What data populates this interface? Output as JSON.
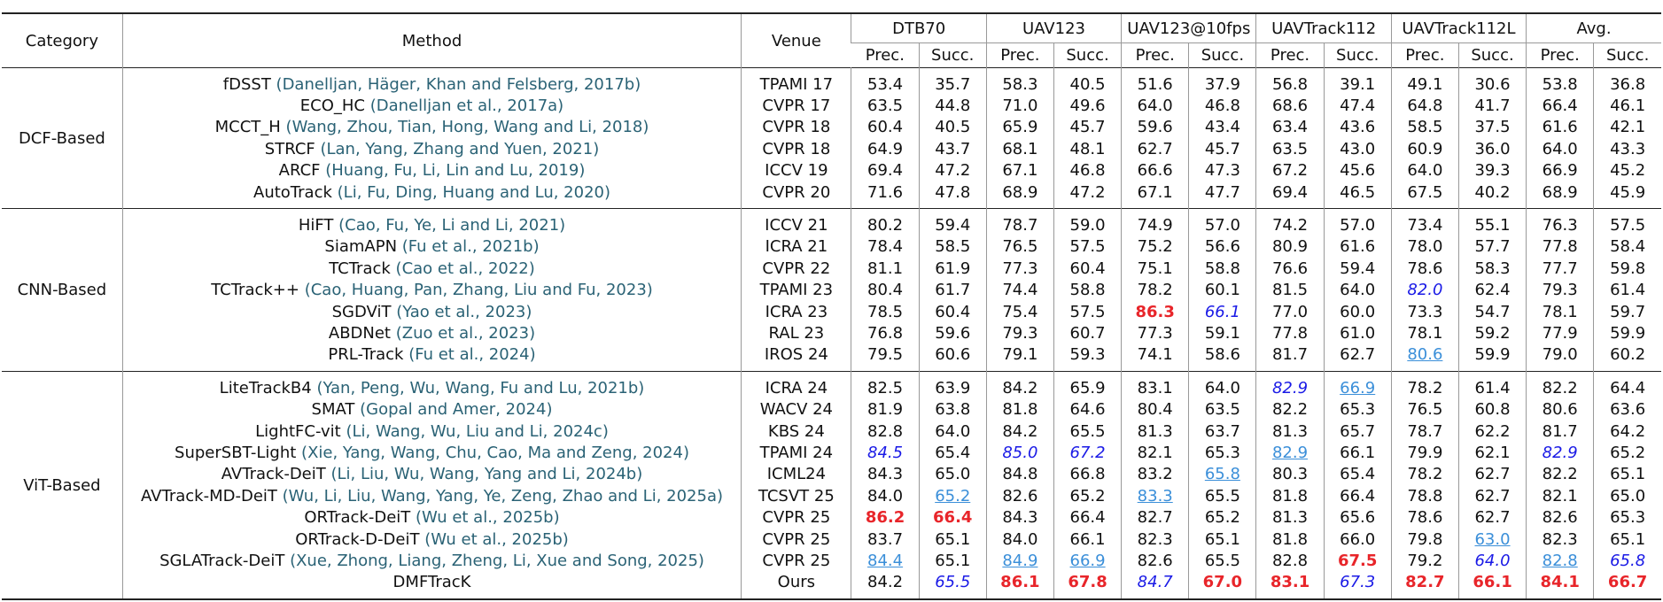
{
  "table": {
    "header": {
      "category": "Category",
      "method": "Method",
      "venue": "Venue",
      "datasets": [
        "DTB70",
        "UAV123",
        "UAV123@10fps",
        "UAVTrack112",
        "UAVTrack112L",
        "Avg."
      ],
      "metrics": [
        "Prec.",
        "Succ."
      ]
    },
    "emphasis_styles": {
      "first": {
        "color": "#e8252a",
        "bold": true
      },
      "second": {
        "color": "#1a1ae6",
        "italic": true
      },
      "third": {
        "color": "#3b8fd9",
        "underline": true
      }
    },
    "groups": [
      {
        "category": "DCF-Based",
        "rows": [
          {
            "method": "fDSST",
            "cite": "(Danelljan, Häger, Khan and Felsberg, 2017b)",
            "venue": "TPAMI 17",
            "values": [
              "53.4",
              "35.7",
              "58.3",
              "40.5",
              "51.6",
              "37.9",
              "56.8",
              "39.1",
              "49.1",
              "30.6",
              "53.8",
              "36.8"
            ]
          },
          {
            "method": "ECO_HC",
            "cite": "(Danelljan et al., 2017a)",
            "venue": "CVPR 17",
            "values": [
              "63.5",
              "44.8",
              "71.0",
              "49.6",
              "64.0",
              "46.8",
              "68.6",
              "47.4",
              "64.8",
              "41.7",
              "66.4",
              "46.1"
            ]
          },
          {
            "method": "MCCT_H",
            "cite": "(Wang, Zhou, Tian, Hong, Wang and Li, 2018)",
            "venue": "CVPR 18",
            "values": [
              "60.4",
              "40.5",
              "65.9",
              "45.7",
              "59.6",
              "43.4",
              "63.4",
              "43.6",
              "58.5",
              "37.5",
              "61.6",
              "42.1"
            ]
          },
          {
            "method": "STRCF",
            "cite": "(Lan, Yang, Zhang and Yuen, 2021)",
            "venue": "CVPR 18",
            "values": [
              "64.9",
              "43.7",
              "68.1",
              "48.1",
              "62.7",
              "45.7",
              "63.5",
              "43.0",
              "60.9",
              "36.0",
              "64.0",
              "43.3"
            ]
          },
          {
            "method": "ARCF",
            "cite": "(Huang, Fu, Li, Lin and Lu, 2019)",
            "venue": "ICCV 19",
            "values": [
              "69.4",
              "47.2",
              "67.1",
              "46.8",
              "66.6",
              "47.3",
              "67.2",
              "45.6",
              "64.0",
              "39.3",
              "66.9",
              "45.2"
            ]
          },
          {
            "method": "AutoTrack",
            "cite": "(Li, Fu, Ding, Huang and Lu, 2020)",
            "venue": "CVPR 20",
            "values": [
              "71.6",
              "47.8",
              "68.9",
              "47.2",
              "67.1",
              "47.7",
              "69.4",
              "46.5",
              "67.5",
              "40.2",
              "68.9",
              "45.9"
            ]
          }
        ]
      },
      {
        "category": "CNN-Based",
        "rows": [
          {
            "method": "HiFT",
            "cite": "(Cao, Fu, Ye, Li and Li, 2021)",
            "venue": "ICCV 21",
            "values": [
              "80.2",
              "59.4",
              "78.7",
              "59.0",
              "74.9",
              "57.0",
              "74.2",
              "57.0",
              "73.4",
              "55.1",
              "76.3",
              "57.5"
            ]
          },
          {
            "method": "SiamAPN",
            "cite": "(Fu et al., 2021b)",
            "venue": "ICRA 21",
            "values": [
              "78.4",
              "58.5",
              "76.5",
              "57.5",
              "75.2",
              "56.6",
              "80.9",
              "61.6",
              "78.0",
              "57.7",
              "77.8",
              "58.4"
            ]
          },
          {
            "method": "TCTrack",
            "cite": "(Cao et al., 2022)",
            "venue": "CVPR 22",
            "values": [
              "81.1",
              "61.9",
              "77.3",
              "60.4",
              "75.1",
              "58.8",
              "76.6",
              "59.4",
              "78.6",
              "58.3",
              "77.7",
              "59.8"
            ]
          },
          {
            "method": "TCTrack++",
            "cite": "(Cao, Huang, Pan, Zhang, Liu and Fu, 2023)",
            "venue": "TPAMI 23",
            "values": [
              "80.4",
              "61.7",
              "74.4",
              "58.8",
              "78.2",
              "60.1",
              "81.5",
              "64.0",
              "82.0",
              "62.4",
              "79.3",
              "61.4"
            ],
            "emphasis": {
              "8": "second"
            }
          },
          {
            "method": "SGDViT",
            "cite": "(Yao et al., 2023)",
            "venue": "ICRA 23",
            "values": [
              "78.5",
              "60.4",
              "75.4",
              "57.5",
              "86.3",
              "66.1",
              "77.0",
              "60.0",
              "73.3",
              "54.7",
              "78.1",
              "59.7"
            ],
            "emphasis": {
              "4": "first",
              "5": "second"
            }
          },
          {
            "method": "ABDNet",
            "cite": "(Zuo et al., 2023)",
            "venue": "RAL 23",
            "values": [
              "76.8",
              "59.6",
              "79.3",
              "60.7",
              "77.3",
              "59.1",
              "77.8",
              "61.0",
              "78.1",
              "59.2",
              "77.9",
              "59.9"
            ]
          },
          {
            "method": "PRL-Track",
            "cite": "(Fu et al., 2024)",
            "venue": "IROS 24",
            "values": [
              "79.5",
              "60.6",
              "79.1",
              "59.3",
              "74.1",
              "58.6",
              "81.7",
              "62.7",
              "80.6",
              "59.9",
              "79.0",
              "60.2"
            ],
            "emphasis": {
              "8": "third"
            }
          }
        ]
      },
      {
        "category": "ViT-Based",
        "rows": [
          {
            "method": "LiteTrackB4",
            "cite": "(Yan, Peng, Wu, Wang, Fu and Lu, 2021b)",
            "venue": "ICRA 24",
            "values": [
              "82.5",
              "63.9",
              "84.2",
              "65.9",
              "83.1",
              "64.0",
              "82.9",
              "66.9",
              "78.2",
              "61.4",
              "82.2",
              "64.4"
            ],
            "emphasis": {
              "6": "second",
              "7": "third"
            }
          },
          {
            "method": "SMAT",
            "cite": "(Gopal and Amer, 2024)",
            "venue": "WACV 24",
            "values": [
              "81.9",
              "63.8",
              "81.8",
              "64.6",
              "80.4",
              "63.5",
              "82.2",
              "65.3",
              "76.5",
              "60.8",
              "80.6",
              "63.6"
            ]
          },
          {
            "method": "LightFC-vit",
            "cite": "(Li, Wang, Wu, Liu and Li, 2024c)",
            "venue": "KBS 24",
            "values": [
              "82.8",
              "64.0",
              "84.2",
              "65.5",
              "81.3",
              "63.7",
              "81.3",
              "65.7",
              "78.7",
              "62.2",
              "81.7",
              "64.2"
            ]
          },
          {
            "method": "SuperSBT-Light",
            "cite": "(Xie, Yang, Wang, Chu, Cao, Ma and Zeng, 2024)",
            "venue": "TPAMI 24",
            "values": [
              "84.5",
              "65.4",
              "85.0",
              "67.2",
              "82.1",
              "65.3",
              "82.9",
              "66.1",
              "79.9",
              "62.1",
              "82.9",
              "65.2"
            ],
            "emphasis": {
              "0": "second",
              "2": "second",
              "3": "second",
              "6": "third",
              "10": "second"
            }
          },
          {
            "method": "AVTrack-DeiT",
            "cite": "(Li, Liu, Wu, Wang, Yang and Li, 2024b)",
            "venue": "ICML24",
            "values": [
              "84.3",
              "65.0",
              "84.8",
              "66.8",
              "83.2",
              "65.8",
              "80.3",
              "65.4",
              "78.2",
              "62.7",
              "82.2",
              "65.1"
            ],
            "emphasis": {
              "5": "third"
            }
          },
          {
            "method": "AVTrack-MD-DeiT",
            "cite": "(Wu, Li, Liu, Wang, Yang, Ye, Zeng, Zhao and Li, 2025a)",
            "venue": "TCSVT 25",
            "values": [
              "84.0",
              "65.2",
              "82.6",
              "65.2",
              "83.3",
              "65.5",
              "81.8",
              "66.4",
              "78.8",
              "62.7",
              "82.1",
              "65.0"
            ],
            "emphasis": {
              "1": "third",
              "4": "third"
            }
          },
          {
            "method": "ORTrack-DeiT",
            "cite": "(Wu et al., 2025b)",
            "venue": "CVPR 25",
            "values": [
              "86.2",
              "66.4",
              "84.3",
              "66.4",
              "82.7",
              "65.2",
              "81.3",
              "65.6",
              "78.6",
              "62.7",
              "82.6",
              "65.3"
            ],
            "emphasis": {
              "0": "first",
              "1": "first"
            }
          },
          {
            "method": "ORTrack-D-DeiT",
            "cite": "(Wu et al., 2025b)",
            "venue": "CVPR 25",
            "values": [
              "83.7",
              "65.1",
              "84.0",
              "66.1",
              "82.3",
              "65.1",
              "81.8",
              "66.0",
              "79.8",
              "63.0",
              "82.3",
              "65.1"
            ],
            "emphasis": {
              "9": "third"
            }
          },
          {
            "method": "SGLATrack-DeiT",
            "cite": "(Xue, Zhong, Liang, Zheng, Li, Xue and Song, 2025)",
            "venue": "CVPR 25",
            "values": [
              "84.4",
              "65.1",
              "84.9",
              "66.9",
              "82.6",
              "65.5",
              "82.8",
              "67.5",
              "79.2",
              "64.0",
              "82.8",
              "65.8"
            ],
            "emphasis": {
              "0": "third",
              "2": "third",
              "3": "third",
              "7": "first",
              "9": "second",
              "10": "third",
              "11": "second"
            }
          },
          {
            "method": "DMFTracK",
            "venue": "Ours",
            "values": [
              "84.2",
              "65.5",
              "86.1",
              "67.8",
              "84.7",
              "67.0",
              "83.1",
              "67.3",
              "82.7",
              "66.1",
              "84.1",
              "66.7"
            ],
            "emphasis": {
              "1": "second",
              "2": "first",
              "3": "first",
              "4": "second",
              "5": "first",
              "6": "first",
              "7": "second",
              "8": "first",
              "9": "first",
              "10": "first",
              "11": "first"
            }
          }
        ]
      }
    ]
  }
}
